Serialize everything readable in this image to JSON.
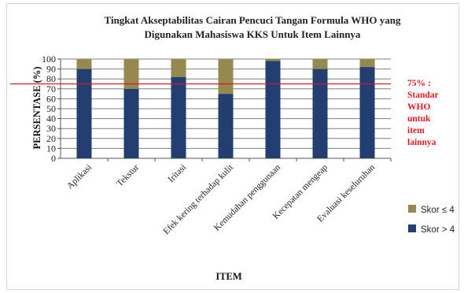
{
  "chart_data": {
    "type": "bar",
    "stacked": true,
    "title_lines": [
      "Tingkat Akseptabilitas Cairan Pencuci Tangan Formula WHO yang",
      "Digunakan Mahasiswa KKS Untuk Item Lainnya"
    ],
    "xlabel": "ITEM",
    "ylabel": "PERSENTASE (%)",
    "ylim": [
      0,
      100
    ],
    "yticks": [
      "0",
      "10",
      "20",
      "30",
      "40",
      "50",
      "60",
      "70",
      "80",
      "90",
      "100"
    ],
    "grid": true,
    "categories": [
      "Aplikasi",
      "Tekstur",
      "Iritasi",
      "Efek kering terhadap kulit",
      "Kemudahan penggunaan",
      "Kecepatan mengeap",
      "Evaluasi keseluruhan"
    ],
    "series": [
      {
        "name": "Skor > 4",
        "color": "#233e70",
        "values": [
          90,
          70,
          82,
          65,
          98,
          90,
          92
        ]
      },
      {
        "name": "Skor ≤ 4",
        "color": "#96894f",
        "values": [
          10,
          30,
          18,
          35,
          2,
          10,
          8
        ]
      }
    ],
    "legend_position": "right",
    "reference_line": {
      "value": 75,
      "color": "#e0191f",
      "label_lines": [
        "75% :",
        "Standar",
        "WHO",
        "untuk",
        "item",
        "lainnya"
      ]
    }
  }
}
